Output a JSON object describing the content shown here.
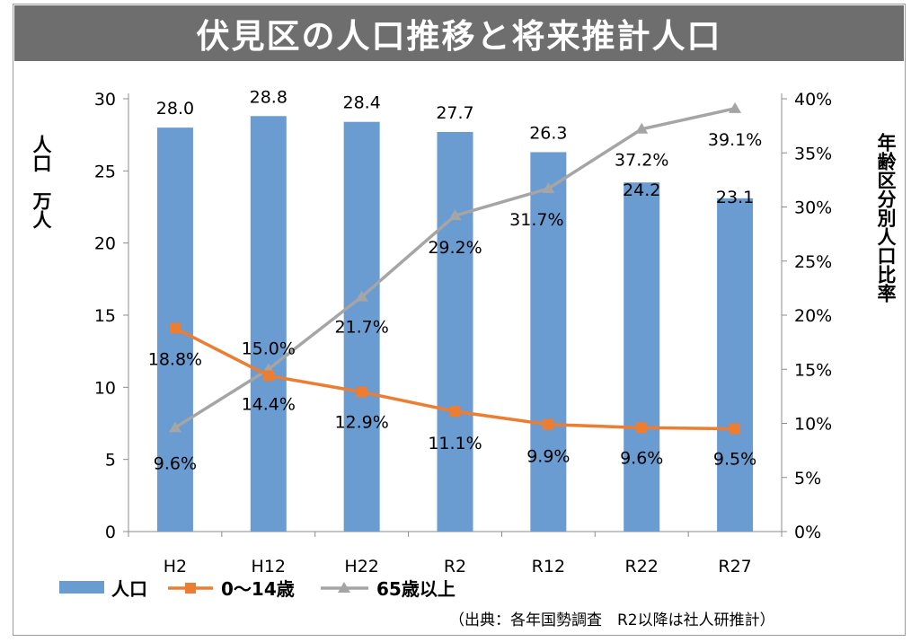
{
  "title": "伏見区の人口推移と将来推計人口",
  "source_note": "（出典：各年国勢調査　R2以降は社人研推計）",
  "colors": {
    "population": "#6a9bd1",
    "young": "#ed7d31",
    "elderly": "#a5a5a5",
    "title_bg": "#6e6e6e"
  },
  "chart_data": {
    "type": "bar",
    "categories": [
      "H2",
      "H12",
      "H22",
      "R2",
      "R12",
      "R22",
      "R27"
    ],
    "left_axis": {
      "label": "人口　万人",
      "ticks": [
        "0",
        "5",
        "10",
        "15",
        "20",
        "25",
        "30"
      ],
      "ylim": [
        0,
        30
      ]
    },
    "right_axis": {
      "label": "年齢区分別人口比率",
      "ticks": [
        "0%",
        "5%",
        "10%",
        "15%",
        "20%",
        "25%",
        "30%",
        "35%",
        "40%"
      ],
      "ylim": [
        0,
        40
      ]
    },
    "series": [
      {
        "name": "人口",
        "type": "bar",
        "axis": "left",
        "values": [
          28.0,
          28.8,
          28.4,
          27.7,
          26.3,
          24.2,
          23.1
        ],
        "labels": [
          "28.0",
          "28.8",
          "28.4",
          "27.7",
          "26.3",
          "24.2",
          "23.1"
        ]
      },
      {
        "name": "0〜14歳",
        "type": "line",
        "axis": "right",
        "values": [
          18.8,
          14.4,
          12.9,
          11.1,
          9.9,
          9.6,
          9.5
        ],
        "labels": [
          "18.8%",
          "14.4%",
          "12.9%",
          "11.1%",
          "9.9%",
          "9.6%",
          "9.5%"
        ]
      },
      {
        "name": "65歳以上",
        "type": "line",
        "axis": "right",
        "values": [
          9.6,
          15.0,
          21.7,
          29.2,
          31.7,
          37.2,
          39.1
        ],
        "labels": [
          "9.6%",
          "15.0%",
          "21.7%",
          "29.2%",
          "31.7%",
          "37.2%",
          "39.1%"
        ]
      }
    ],
    "legend": [
      "人口",
      "0〜14歳",
      "65歳以上"
    ],
    "legend_position": "bottom-left",
    "grid": false
  }
}
